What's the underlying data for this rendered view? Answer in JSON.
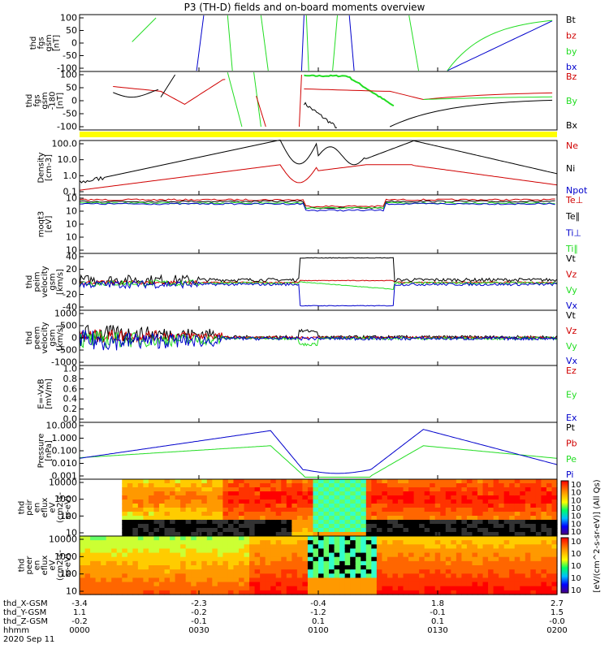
{
  "title": "P3 (TH-D) fields and on-board moments overview",
  "colors": {
    "black": "#000000",
    "red": "#d00000",
    "green": "#22dd22",
    "blue": "#0000cc",
    "yellow": "#ffff00"
  },
  "chart_data": {
    "type": "line",
    "title": "P3 (TH-D) fields and on-board moments overview",
    "x_time_ticks": [
      "0000",
      "0030",
      "0100",
      "0130",
      "0200"
    ],
    "date": "2020 Sep 11",
    "position_rows": [
      {
        "label": "thd_X-GSM",
        "values": [
          "-3.4",
          "-2.3",
          "-0.4",
          "1.8",
          "2.7"
        ]
      },
      {
        "label": "thd_Y-GSM",
        "values": [
          "1.1",
          "-0.2",
          "-1.2",
          "-0.1",
          "1.5"
        ]
      },
      {
        "label": "thd_Z-GSM",
        "values": [
          "-0.2",
          "-0.1",
          "0.1",
          "0.1",
          "-0.0"
        ]
      },
      {
        "label": "hhmm",
        "values": [
          "0000",
          "0030",
          "0100",
          "0130",
          "0200"
        ]
      }
    ],
    "panels": [
      {
        "ylabel": [
          "thd",
          "fgs",
          "gsm",
          "[nT]"
        ],
        "ylim": [
          -100,
          100
        ],
        "yticks": [
          "100",
          "50",
          "0",
          "-50",
          "-100"
        ],
        "legend": [
          {
            "text": "Bt",
            "color": "black"
          },
          {
            "text": "bz",
            "color": "red"
          },
          {
            "text": "by",
            "color": "green"
          },
          {
            "text": "bx",
            "color": "blue"
          }
        ]
      },
      {
        "ylabel": [
          "thd",
          "fgs",
          "gsm",
          "-180",
          "[nT]"
        ],
        "ylim": [
          -120,
          100
        ],
        "yticks": [
          "100",
          "50",
          "0",
          "-50",
          "-100"
        ],
        "legend": [
          {
            "text": "Bz",
            "color": "red"
          },
          {
            "text": "By",
            "color": "green"
          },
          {
            "text": "Bx",
            "color": "black"
          }
        ]
      },
      {
        "ylabel": [
          "Density",
          "[cm-3]"
        ],
        "scale": "log",
        "yticks": [
          "100.0",
          "10.0",
          "1.0",
          "0.1"
        ],
        "legend": [
          {
            "text": "Ne",
            "color": "red"
          },
          {
            "text": "Ni",
            "color": "black"
          },
          {
            "text": "Npot",
            "color": "blue"
          }
        ]
      },
      {
        "ylabel": [
          "moqt3",
          "[eV]"
        ],
        "scale": "log",
        "yticks": [
          "10",
          "10",
          "10",
          "10",
          "10"
        ],
        "legend": [
          {
            "text": "Te⊥",
            "color": "red"
          },
          {
            "text": "Te∥",
            "color": "black"
          },
          {
            "text": "Ti⊥",
            "color": "blue"
          },
          {
            "text": "Ti∥",
            "color": "green"
          }
        ]
      },
      {
        "ylabel": [
          "thd",
          "peim",
          "velocity",
          "gsm",
          "[km/s]"
        ],
        "ylim": [
          -40,
          40
        ],
        "yticks": [
          "40",
          "20",
          "0",
          "-20",
          "-40"
        ],
        "legend": [
          {
            "text": "Vt",
            "color": "black"
          },
          {
            "text": "Vz",
            "color": "red"
          },
          {
            "text": "Vy",
            "color": "green"
          },
          {
            "text": "Vx",
            "color": "blue"
          }
        ]
      },
      {
        "ylabel": [
          "thd",
          "peem",
          "velocity",
          "gsm",
          "[km/s]"
        ],
        "ylim": [
          -1000,
          1000
        ],
        "yticks": [
          "1000",
          "500",
          "0",
          "-500",
          "-1000"
        ],
        "legend": [
          {
            "text": "Vt",
            "color": "black"
          },
          {
            "text": "Vz",
            "color": "red"
          },
          {
            "text": "Vy",
            "color": "green"
          },
          {
            "text": "Vx",
            "color": "blue"
          }
        ]
      },
      {
        "ylabel": [
          "E=-VxB",
          "[mV/m]"
        ],
        "ylim": [
          0,
          1
        ],
        "yticks": [
          "1.0",
          "0.8",
          "0.6",
          "0.4",
          "0.2",
          "0.0"
        ],
        "legend": [
          {
            "text": "Ez",
            "color": "red"
          },
          {
            "text": "Ey",
            "color": "green"
          },
          {
            "text": "Ex",
            "color": "blue"
          }
        ]
      },
      {
        "ylabel": [
          "Pressure",
          "[nPa]"
        ],
        "scale": "log",
        "yticks": [
          "10.000",
          "1.000",
          "0.100",
          "0.010",
          "0.001"
        ],
        "legend": [
          {
            "text": "Pt",
            "color": "black"
          },
          {
            "text": "Pb",
            "color": "red"
          },
          {
            "text": "Pe",
            "color": "green"
          },
          {
            "text": "Pi",
            "color": "blue"
          }
        ]
      },
      {
        "ylabel": [
          "thd",
          "peir",
          "en",
          "eflux",
          "eV",
          "(cm2-s-",
          "sr-eV)"
        ],
        "scale": "log",
        "yticks": [
          "10000",
          "1000",
          "100",
          "10"
        ]
      },
      {
        "ylabel": [
          "thd",
          "peer",
          "en",
          "eflux",
          "eV",
          "(cm2-s-",
          "sr-eV)"
        ],
        "scale": "log",
        "yticks": [
          "10000",
          "1000",
          "100",
          "10"
        ]
      }
    ],
    "colorbars": [
      {
        "ticks": [
          "10",
          "10",
          "10",
          "10",
          "10",
          "10",
          "10"
        ],
        "label": "[eV/(cm^2-s-sr-eV)] (All Qs)"
      },
      {
        "ticks": [
          "10",
          "10",
          "10",
          "10",
          "10"
        ],
        "label": "[eV/(cm^2-s-sr-eV)] (All Qs)"
      }
    ]
  }
}
